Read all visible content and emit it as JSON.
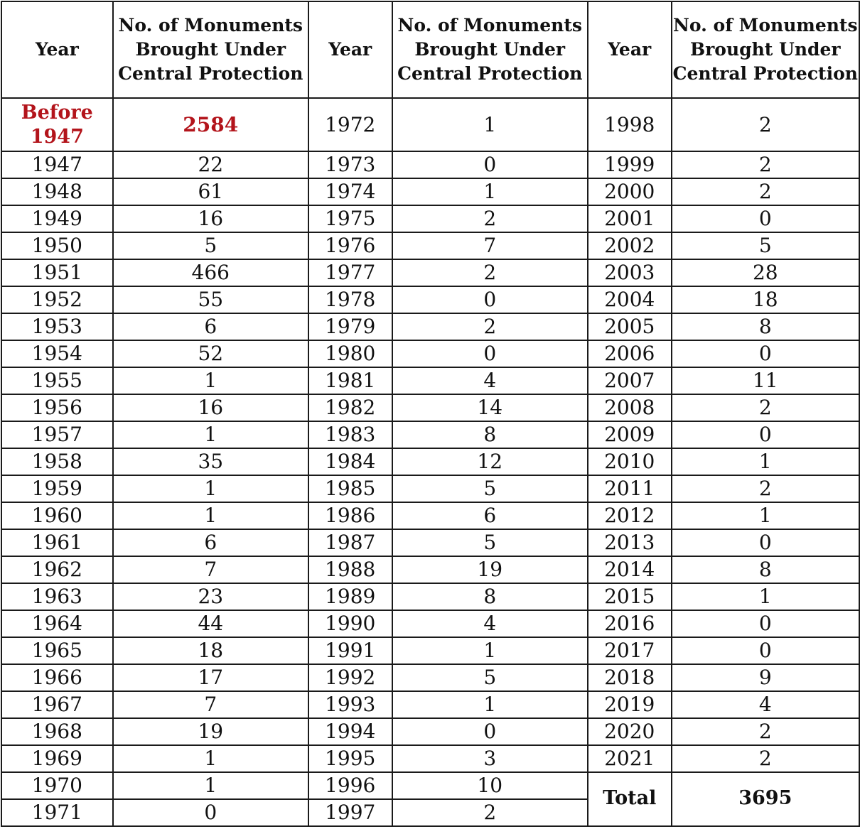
{
  "headers": {
    "year": "Year",
    "count": "No. of Monuments Brought Under Central Protection"
  },
  "first_row": {
    "year": "Before 1947",
    "count": "2584",
    "year2": "1972",
    "count2": "1",
    "year3": "1998",
    "count3": "2"
  },
  "rows": [
    [
      "1947",
      "22",
      "1973",
      "0",
      "1999",
      "2"
    ],
    [
      "1948",
      "61",
      "1974",
      "1",
      "2000",
      "2"
    ],
    [
      "1949",
      "16",
      "1975",
      "2",
      "2001",
      "0"
    ],
    [
      "1950",
      "5",
      "1976",
      "7",
      "2002",
      "5"
    ],
    [
      "1951",
      "466",
      "1977",
      "2",
      "2003",
      "28"
    ],
    [
      "1952",
      "55",
      "1978",
      "0",
      "2004",
      "18"
    ],
    [
      "1953",
      "6",
      "1979",
      "2",
      "2005",
      "8"
    ],
    [
      "1954",
      "52",
      "1980",
      "0",
      "2006",
      "0"
    ],
    [
      "1955",
      "1",
      "1981",
      "4",
      "2007",
      "11"
    ],
    [
      "1956",
      "16",
      "1982",
      "14",
      "2008",
      "2"
    ],
    [
      "1957",
      "1",
      "1983",
      "8",
      "2009",
      "0"
    ],
    [
      "1958",
      "35",
      "1984",
      "12",
      "2010",
      "1"
    ],
    [
      "1959",
      "1",
      "1985",
      "5",
      "2011",
      "2"
    ],
    [
      "1960",
      "1",
      "1986",
      "6",
      "2012",
      "1"
    ],
    [
      "1961",
      "6",
      "1987",
      "5",
      "2013",
      "0"
    ],
    [
      "1962",
      "7",
      "1988",
      "19",
      "2014",
      "8"
    ],
    [
      "1963",
      "23",
      "1989",
      "8",
      "2015",
      "1"
    ],
    [
      "1964",
      "44",
      "1990",
      "4",
      "2016",
      "0"
    ],
    [
      "1965",
      "18",
      "1991",
      "1",
      "2017",
      "0"
    ],
    [
      "1966",
      "17",
      "1992",
      "5",
      "2018",
      "9"
    ],
    [
      "1967",
      "7",
      "1993",
      "1",
      "2019",
      "4"
    ],
    [
      "1968",
      "19",
      "1994",
      "0",
      "2020",
      "2"
    ],
    [
      "1969",
      "1",
      "1995",
      "3",
      "2021",
      "2"
    ]
  ],
  "tail_rows": [
    [
      "1970",
      "1",
      "1996",
      "10"
    ],
    [
      "1971",
      "0",
      "1997",
      "2"
    ]
  ],
  "total": {
    "label": "Total",
    "value": "3695"
  },
  "colors": {
    "highlight": "#b3141b",
    "border": "#1a1a1a",
    "text": "#111111"
  }
}
